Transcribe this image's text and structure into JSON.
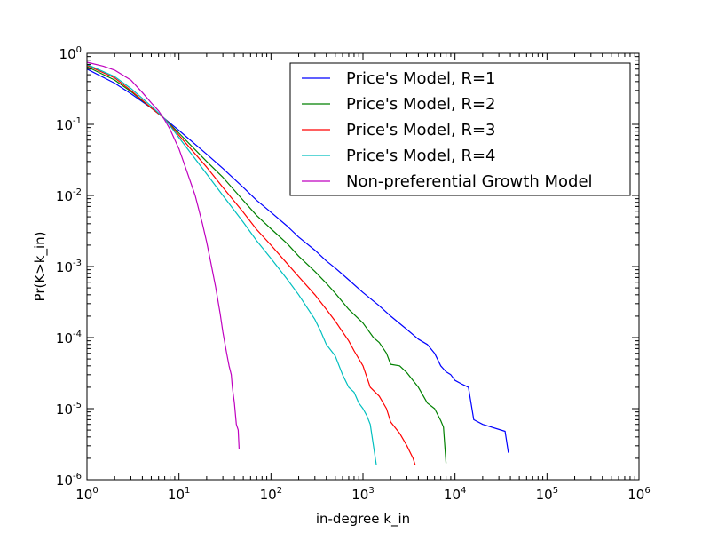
{
  "chart_data": {
    "type": "line",
    "title": "",
    "xlabel": "in-degree k_in",
    "ylabel": "Pr(K>k_in)",
    "xscale": "log",
    "yscale": "log",
    "xlim": [
      1,
      1000000
    ],
    "ylim": [
      1e-06,
      1
    ],
    "grid": false,
    "legend_position": "top-right",
    "x_ticks": [
      {
        "value": 1,
        "base": "10",
        "exp": "0"
      },
      {
        "value": 10,
        "base": "10",
        "exp": "1"
      },
      {
        "value": 100,
        "base": "10",
        "exp": "2"
      },
      {
        "value": 1000,
        "base": "10",
        "exp": "3"
      },
      {
        "value": 10000,
        "base": "10",
        "exp": "4"
      },
      {
        "value": 100000,
        "base": "10",
        "exp": "5"
      },
      {
        "value": 1000000,
        "base": "10",
        "exp": "6"
      }
    ],
    "y_ticks": [
      {
        "value": 1,
        "base": "10",
        "exp": "0"
      },
      {
        "value": 0.1,
        "base": "10",
        "exp": "-1"
      },
      {
        "value": 0.01,
        "base": "10",
        "exp": "-2"
      },
      {
        "value": 0.001,
        "base": "10",
        "exp": "-3"
      },
      {
        "value": 0.0001,
        "base": "10",
        "exp": "-4"
      },
      {
        "value": 1e-05,
        "base": "10",
        "exp": "-5"
      },
      {
        "value": 1e-06,
        "base": "10",
        "exp": "-6"
      }
    ],
    "series": [
      {
        "name": "Price's Model, R=1",
        "color": "#0000ff",
        "points": [
          [
            1,
            0.6
          ],
          [
            2,
            0.38
          ],
          [
            3,
            0.27
          ],
          [
            5,
            0.17
          ],
          [
            7,
            0.12
          ],
          [
            10,
            0.082
          ],
          [
            20,
            0.038
          ],
          [
            30,
            0.024
          ],
          [
            50,
            0.013
          ],
          [
            70,
            0.0085
          ],
          [
            100,
            0.0058
          ],
          [
            150,
            0.0037
          ],
          [
            200,
            0.0026
          ],
          [
            300,
            0.0017
          ],
          [
            400,
            0.0012
          ],
          [
            500,
            0.00095
          ],
          [
            700,
            0.00065
          ],
          [
            1000,
            0.00043
          ],
          [
            1500,
            0.00028
          ],
          [
            2000,
            0.0002
          ],
          [
            3000,
            0.00013
          ],
          [
            4000,
            9.5e-05
          ],
          [
            5000,
            8e-05
          ],
          [
            6000,
            6e-05
          ],
          [
            7000,
            4e-05
          ],
          [
            8000,
            3.3e-05
          ],
          [
            9000,
            3e-05
          ],
          [
            10000,
            2.5e-05
          ],
          [
            12000,
            2.2e-05
          ],
          [
            14000,
            2e-05
          ],
          [
            16000,
            7e-06
          ],
          [
            20000,
            6e-06
          ],
          [
            35000,
            4.8e-06
          ],
          [
            38000,
            2.4e-06
          ]
        ]
      },
      {
        "name": "Price's Model, R=2",
        "color": "#008000",
        "points": [
          [
            1,
            0.65
          ],
          [
            2,
            0.42
          ],
          [
            3,
            0.29
          ],
          [
            5,
            0.17
          ],
          [
            7,
            0.12
          ],
          [
            10,
            0.075
          ],
          [
            20,
            0.03
          ],
          [
            30,
            0.018
          ],
          [
            50,
            0.0085
          ],
          [
            70,
            0.0052
          ],
          [
            100,
            0.0034
          ],
          [
            150,
            0.0021
          ],
          [
            200,
            0.0014
          ],
          [
            300,
            0.00085
          ],
          [
            400,
            0.00058
          ],
          [
            500,
            0.00042
          ],
          [
            700,
            0.00025
          ],
          [
            1000,
            0.00016
          ],
          [
            1300,
            0.0001
          ],
          [
            1500,
            8.5e-05
          ],
          [
            1800,
            6e-05
          ],
          [
            2000,
            4.2e-05
          ],
          [
            2500,
            4e-05
          ],
          [
            3000,
            3.2e-05
          ],
          [
            4000,
            2e-05
          ],
          [
            5000,
            1.2e-05
          ],
          [
            6000,
            1e-05
          ],
          [
            7000,
            6.8e-06
          ],
          [
            7500,
            5.5e-06
          ],
          [
            8000,
            1.7e-06
          ]
        ]
      },
      {
        "name": "Price's Model, R=3",
        "color": "#ff0000",
        "points": [
          [
            1,
            0.68
          ],
          [
            2,
            0.45
          ],
          [
            3,
            0.3
          ],
          [
            5,
            0.17
          ],
          [
            7,
            0.12
          ],
          [
            10,
            0.07
          ],
          [
            20,
            0.025
          ],
          [
            30,
            0.013
          ],
          [
            50,
            0.0058
          ],
          [
            70,
            0.0033
          ],
          [
            100,
            0.002
          ],
          [
            150,
            0.0011
          ],
          [
            200,
            0.00072
          ],
          [
            300,
            0.0004
          ],
          [
            400,
            0.00025
          ],
          [
            500,
            0.00017
          ],
          [
            700,
            9e-05
          ],
          [
            800,
            6.5e-05
          ],
          [
            1000,
            4e-05
          ],
          [
            1200,
            2e-05
          ],
          [
            1500,
            1.5e-05
          ],
          [
            1800,
            1e-05
          ],
          [
            2000,
            6.5e-06
          ],
          [
            2500,
            4.5e-06
          ],
          [
            3000,
            3e-06
          ],
          [
            3500,
            2e-06
          ],
          [
            3700,
            1.6e-06
          ]
        ]
      },
      {
        "name": "Price's Model, R=4",
        "color": "#00bfbf",
        "points": [
          [
            1,
            0.7
          ],
          [
            2,
            0.47
          ],
          [
            3,
            0.32
          ],
          [
            5,
            0.18
          ],
          [
            7,
            0.12
          ],
          [
            10,
            0.065
          ],
          [
            20,
            0.02
          ],
          [
            30,
            0.01
          ],
          [
            50,
            0.0042
          ],
          [
            70,
            0.0023
          ],
          [
            100,
            0.0013
          ],
          [
            150,
            0.00066
          ],
          [
            200,
            0.0004
          ],
          [
            300,
            0.00018
          ],
          [
            350,
            0.00012
          ],
          [
            400,
            8e-05
          ],
          [
            500,
            5.5e-05
          ],
          [
            600,
            3e-05
          ],
          [
            700,
            2e-05
          ],
          [
            800,
            1.7e-05
          ],
          [
            900,
            1.2e-05
          ],
          [
            1000,
            1e-05
          ],
          [
            1100,
            8e-06
          ],
          [
            1200,
            6e-06
          ],
          [
            1300,
            3e-06
          ],
          [
            1400,
            1.6e-06
          ]
        ]
      },
      {
        "name": "Non-preferential Growth Model",
        "color": "#bf00bf",
        "points": [
          [
            1,
            0.75
          ],
          [
            1.5,
            0.66
          ],
          [
            2,
            0.58
          ],
          [
            3,
            0.42
          ],
          [
            4,
            0.28
          ],
          [
            5,
            0.2
          ],
          [
            6,
            0.155
          ],
          [
            7,
            0.115
          ],
          [
            8,
            0.085
          ],
          [
            10,
            0.045
          ],
          [
            12,
            0.023
          ],
          [
            15,
            0.01
          ],
          [
            18,
            0.004
          ],
          [
            20,
            0.0022
          ],
          [
            22,
            0.0012
          ],
          [
            25,
            0.00052
          ],
          [
            28,
            0.00022
          ],
          [
            30,
            0.00012
          ],
          [
            33,
            6e-05
          ],
          [
            35,
            4e-05
          ],
          [
            37,
            3e-05
          ],
          [
            38,
            2e-05
          ],
          [
            40,
            1.2e-05
          ],
          [
            42,
            6e-06
          ],
          [
            44,
            5e-06
          ],
          [
            45,
            2.7e-06
          ]
        ]
      }
    ]
  }
}
